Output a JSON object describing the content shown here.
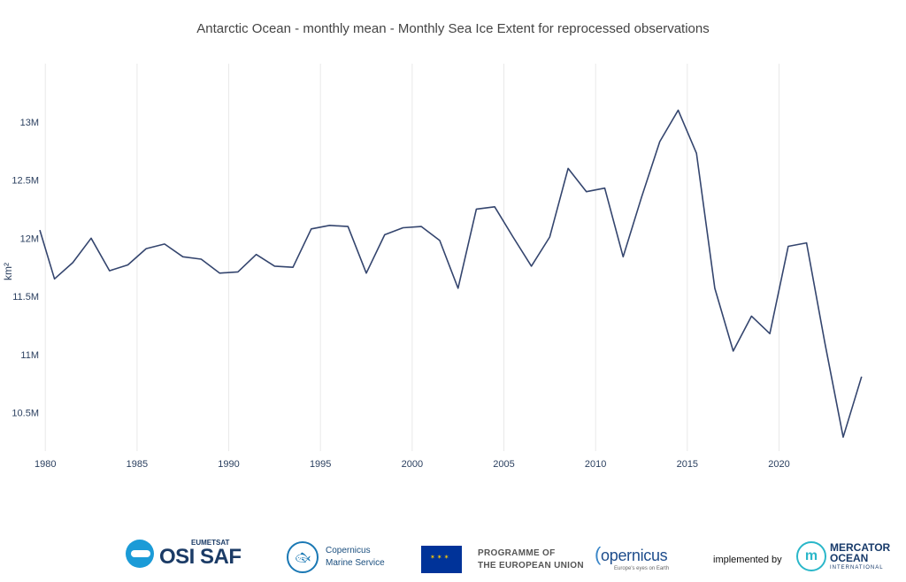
{
  "chart_data": {
    "type": "line",
    "title": "Antarctic Ocean - monthly mean - Monthly Sea Ice Extent for reprocessed observations",
    "xlabel": "",
    "ylabel": "km²",
    "xlim": [
      1979.7,
      2024.8
    ],
    "ylim": [
      10.17,
      13.5
    ],
    "x_ticks": [
      1980,
      1985,
      1990,
      1995,
      2000,
      2005,
      2010,
      2015,
      2020
    ],
    "y_ticks": [
      10.5,
      11,
      11.5,
      12,
      12.5,
      13
    ],
    "y_tick_labels": [
      "10.5M",
      "11M",
      "11.5M",
      "12M",
      "12.5M",
      "13M"
    ],
    "grid": true,
    "series": [
      {
        "name": "Monthly Sea Ice Extent",
        "color": "#34456e",
        "x": [
          1979.5,
          1980.5,
          1981.5,
          1982.5,
          1983.5,
          1984.5,
          1985.5,
          1986.5,
          1987.5,
          1988.5,
          1989.5,
          1990.5,
          1991.5,
          1992.5,
          1993.5,
          1994.5,
          1995.5,
          1996.5,
          1997.5,
          1998.5,
          1999.5,
          2000.5,
          2001.5,
          2002.5,
          2003.5,
          2004.5,
          2005.5,
          2006.5,
          2007.5,
          2008.5,
          2009.5,
          2010.5,
          2011.5,
          2012.5,
          2013.5,
          2014.5,
          2015.5,
          2016.5,
          2017.5,
          2018.5,
          2019.5,
          2020.5,
          2021.5,
          2022.5,
          2023.5,
          2024.5
        ],
        "values": [
          12.07,
          11.65,
          11.79,
          12.0,
          11.72,
          11.77,
          11.91,
          11.95,
          11.84,
          11.82,
          11.7,
          11.71,
          11.86,
          11.76,
          11.75,
          12.08,
          12.11,
          12.1,
          11.7,
          12.03,
          12.09,
          12.1,
          11.98,
          11.57,
          12.25,
          12.27,
          12.01,
          11.76,
          12.01,
          12.6,
          12.4,
          12.43,
          11.84,
          12.35,
          12.83,
          13.1,
          12.73,
          11.57,
          11.03,
          11.33,
          11.18,
          11.93,
          11.96,
          11.1,
          10.29,
          10.81
        ]
      }
    ]
  },
  "logos": {
    "osisaf_super": "EUMETSAT",
    "osisaf_main": "OSI SAF",
    "cms_line1": "Copernicus",
    "cms_line2": "Marine Service",
    "eu_line1": "PROGRAMME OF",
    "eu_line2": "THE EUROPEAN UNION",
    "copernicus_word": "opernicus",
    "copernicus_tag": "Europe's eyes on Earth",
    "implemented_by": "implemented by",
    "mercator_line1": "MERCATOR",
    "mercator_line2": "OCEAN",
    "mercator_line3": "INTERNATIONAL"
  }
}
